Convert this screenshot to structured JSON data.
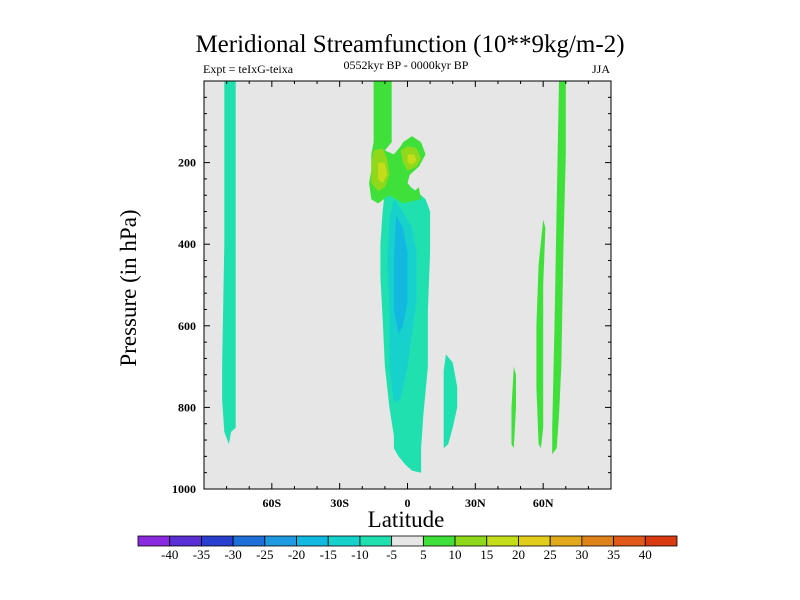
{
  "chart_data": {
    "type": "heatmap",
    "title": "Meridional Streamfunction (10**9kg/m-2)",
    "subtitle_left": "Expt = teIxG-teixa",
    "subtitle_center": "0552kyr BP - 0000kyr BP",
    "subtitle_right": "JJA",
    "xlabel": "Latitude",
    "ylabel": "Pressure (in hPa)",
    "xlim": [
      -90,
      90
    ],
    "ylim": [
      1000,
      0
    ],
    "x_ticks": [
      -60,
      -30,
      0,
      30,
      60
    ],
    "x_tick_labels": [
      "60S",
      "30S",
      "0",
      "30N",
      "60N"
    ],
    "y_ticks": [
      200,
      400,
      600,
      800,
      1000
    ],
    "y_tick_labels": [
      "200",
      "400",
      "600",
      "800",
      "1000"
    ],
    "background_color": "#e6e6e6",
    "colorbar": {
      "levels": [
        "-40",
        "-35",
        "-30",
        "-25",
        "-20",
        "-15",
        "-10",
        "-5",
        "5",
        "10",
        "15",
        "20",
        "25",
        "30",
        "35",
        "40"
      ],
      "colors": [
        "#8a2be2",
        "#5a2fd6",
        "#2a3fd0",
        "#1f6fd8",
        "#1f9ae0",
        "#12b8e0",
        "#17d2cc",
        "#20e0b0",
        "#e6e6e6",
        "#3fe03a",
        "#8fd81c",
        "#c4dc1a",
        "#e2cc1c",
        "#e0a81a",
        "#e0821a",
        "#e0581a",
        "#d93a12"
      ]
    },
    "regions": [
      {
        "value": -7.5,
        "points": [
          [
            -81,
            0
          ],
          [
            -76,
            0
          ],
          [
            -76,
            850
          ],
          [
            -78,
            860
          ],
          [
            -79,
            890
          ],
          [
            -81,
            860
          ],
          [
            -82,
            780
          ],
          [
            -82,
            700
          ],
          [
            -81,
            400
          ]
        ]
      },
      {
        "value": -7.5,
        "points": [
          [
            -9,
            215
          ],
          [
            -4,
            240
          ],
          [
            4,
            270
          ],
          [
            8,
            290
          ],
          [
            10,
            320
          ],
          [
            10,
            420
          ],
          [
            9,
            560
          ],
          [
            9,
            700
          ],
          [
            7,
            820
          ],
          [
            6,
            900
          ],
          [
            6,
            960
          ],
          [
            2,
            955
          ],
          [
            -1,
            940
          ],
          [
            -4,
            920
          ],
          [
            -6,
            900
          ],
          [
            -6,
            870
          ],
          [
            -8,
            800
          ],
          [
            -10,
            700
          ],
          [
            -11,
            580
          ],
          [
            -12,
            480
          ],
          [
            -12,
            400
          ],
          [
            -11,
            320
          ],
          [
            -10,
            270
          ]
        ]
      },
      {
        "value": -12.5,
        "points": [
          [
            -6,
            290
          ],
          [
            -2,
            320
          ],
          [
            2,
            360
          ],
          [
            4,
            420
          ],
          [
            4,
            540
          ],
          [
            2,
            620
          ],
          [
            0,
            700
          ],
          [
            -3,
            780
          ],
          [
            -6,
            790
          ],
          [
            -8,
            700
          ],
          [
            -8,
            560
          ],
          [
            -9,
            440
          ],
          [
            -8,
            340
          ]
        ]
      },
      {
        "value": -17.5,
        "points": [
          [
            -5,
            330
          ],
          [
            -2,
            360
          ],
          [
            0,
            420
          ],
          [
            0,
            540
          ],
          [
            -2,
            600
          ],
          [
            -4,
            620
          ],
          [
            -6,
            560
          ],
          [
            -6,
            440
          ]
        ]
      },
      {
        "value": -7.5,
        "points": [
          [
            17,
            670
          ],
          [
            20,
            690
          ],
          [
            22,
            750
          ],
          [
            22,
            800
          ],
          [
            20,
            850
          ],
          [
            18,
            890
          ],
          [
            16,
            900
          ],
          [
            16,
            840
          ],
          [
            16,
            760
          ],
          [
            16,
            710
          ]
        ]
      },
      {
        "value": 7.5,
        "points": [
          [
            -15,
            0
          ],
          [
            -7,
            0
          ],
          [
            -7,
            150
          ],
          [
            -10,
            170
          ],
          [
            -6,
            180
          ],
          [
            -3,
            160
          ],
          [
            -2,
            150
          ],
          [
            2,
            135
          ],
          [
            6,
            150
          ],
          [
            8,
            180
          ],
          [
            5,
            210
          ],
          [
            1,
            230
          ],
          [
            0,
            250
          ],
          [
            3,
            270
          ],
          [
            5,
            260
          ],
          [
            6,
            290
          ],
          [
            -2,
            300
          ],
          [
            -5,
            290
          ],
          [
            -8,
            280
          ],
          [
            -13,
            300
          ],
          [
            -16,
            290
          ],
          [
            -17,
            250
          ],
          [
            -16,
            220
          ],
          [
            -16,
            180
          ],
          [
            -15,
            150
          ]
        ]
      },
      {
        "value": 12.5,
        "points": [
          [
            -15,
            170
          ],
          [
            -11,
            165
          ],
          [
            -9,
            190
          ],
          [
            -8,
            230
          ],
          [
            -10,
            260
          ],
          [
            -13,
            270
          ],
          [
            -16,
            250
          ],
          [
            -16,
            200
          ]
        ]
      },
      {
        "value": 12.5,
        "points": [
          [
            -3,
            170
          ],
          [
            0,
            160
          ],
          [
            4,
            165
          ],
          [
            6,
            190
          ],
          [
            4,
            210
          ],
          [
            0,
            220
          ],
          [
            -2,
            200
          ]
        ]
      },
      {
        "value": 17.5,
        "points": [
          [
            -13,
            200
          ],
          [
            -10,
            200
          ],
          [
            -9,
            230
          ],
          [
            -11,
            250
          ],
          [
            -13,
            240
          ]
        ]
      },
      {
        "value": 17.5,
        "points": [
          [
            0,
            180
          ],
          [
            3,
            180
          ],
          [
            4,
            195
          ],
          [
            2,
            205
          ],
          [
            0,
            200
          ]
        ]
      },
      {
        "value": 7.5,
        "points": [
          [
            67,
            0
          ],
          [
            70,
            0
          ],
          [
            70,
            180
          ],
          [
            69,
            400
          ],
          [
            68,
            700
          ],
          [
            67,
            820
          ],
          [
            66,
            900
          ],
          [
            64,
            915
          ],
          [
            64,
            850
          ],
          [
            65,
            600
          ],
          [
            66,
            300
          ]
        ]
      },
      {
        "value": 7.5,
        "points": [
          [
            60,
            340
          ],
          [
            61,
            360
          ],
          [
            60,
            500
          ],
          [
            60,
            700
          ],
          [
            60,
            850
          ],
          [
            59,
            900
          ],
          [
            58,
            890
          ],
          [
            57,
            750
          ],
          [
            57,
            600
          ],
          [
            58,
            450
          ]
        ]
      },
      {
        "value": 7.5,
        "points": [
          [
            47,
            700
          ],
          [
            48,
            720
          ],
          [
            48,
            800
          ],
          [
            47,
            900
          ],
          [
            46,
            890
          ],
          [
            46,
            800
          ]
        ]
      }
    ]
  }
}
